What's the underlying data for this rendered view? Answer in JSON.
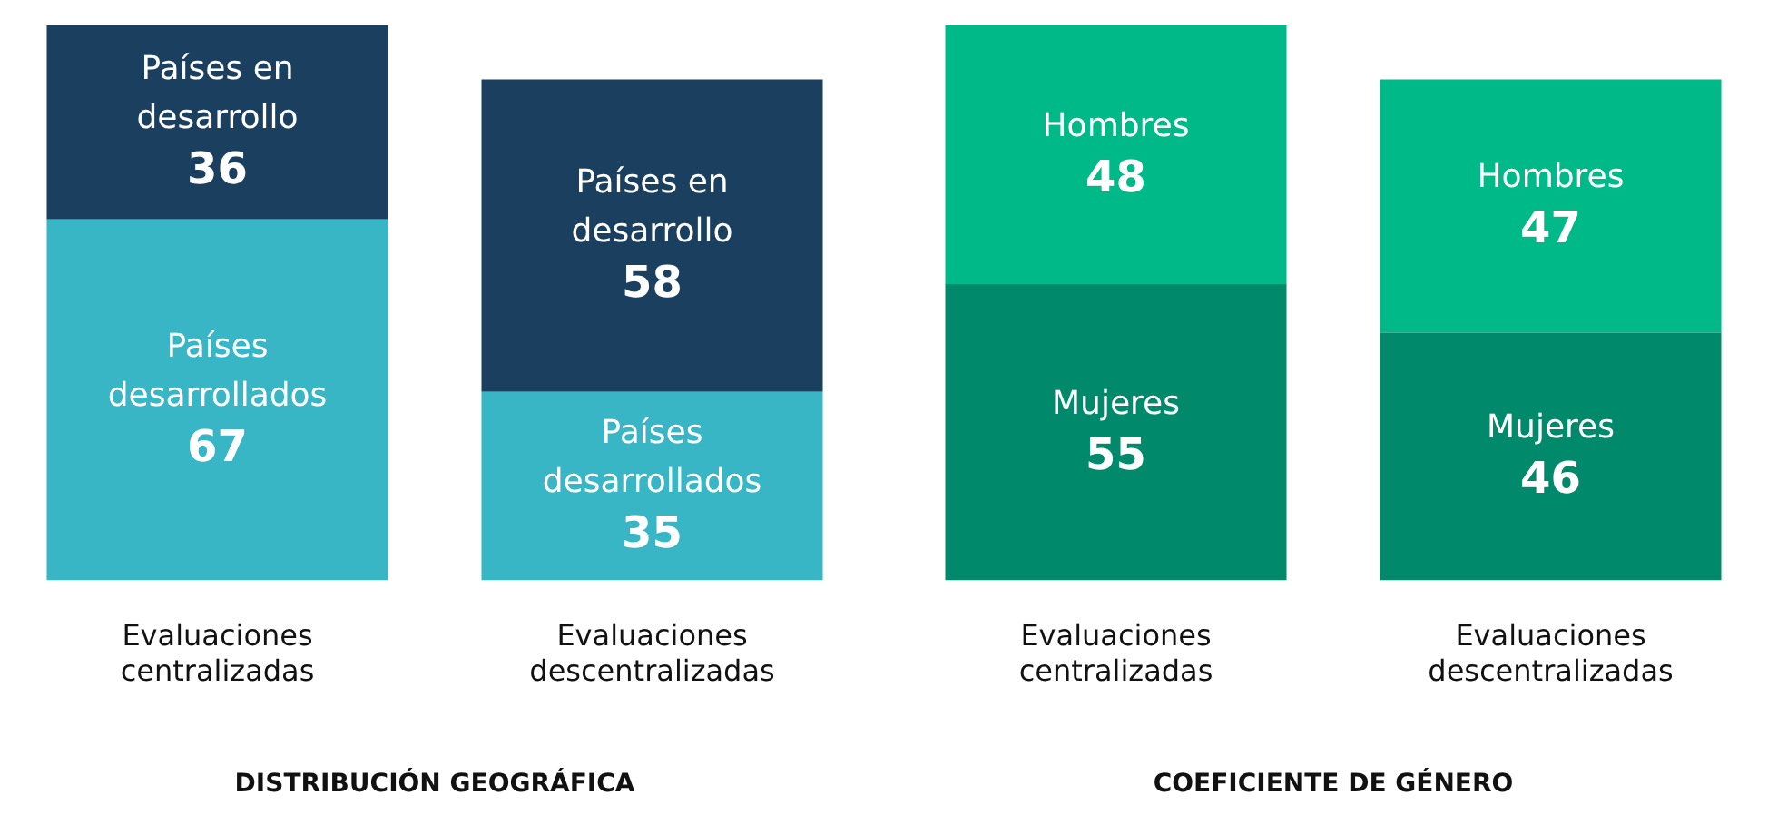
{
  "chart_data": [
    {
      "type": "bar",
      "stacked": true,
      "title": "DISTRIBUCIÓN GEOGRÁFICA",
      "categories": [
        "Evaluaciones centralizadas",
        "Evaluaciones descentralizadas"
      ],
      "tick_labels": "x",
      "data_labels": true,
      "series": [
        {
          "name": "Países desarrollados",
          "color": "#38b6c5",
          "values": [
            67,
            35
          ]
        },
        {
          "name": "Países en desarrollo",
          "color": "#1b3f5e",
          "values": [
            36,
            58
          ]
        }
      ]
    },
    {
      "type": "bar",
      "stacked": true,
      "title": "COEFICIENTE DE GÉNERO",
      "categories": [
        "Evaluaciones centralizadas",
        "Evaluaciones descentralizadas"
      ],
      "tick_labels": "x",
      "data_labels": true,
      "series": [
        {
          "name": "Mujeres",
          "color": "#00896b",
          "values": [
            55,
            46
          ]
        },
        {
          "name": "Hombres",
          "color": "#00b988",
          "values": [
            48,
            47
          ]
        }
      ]
    }
  ]
}
